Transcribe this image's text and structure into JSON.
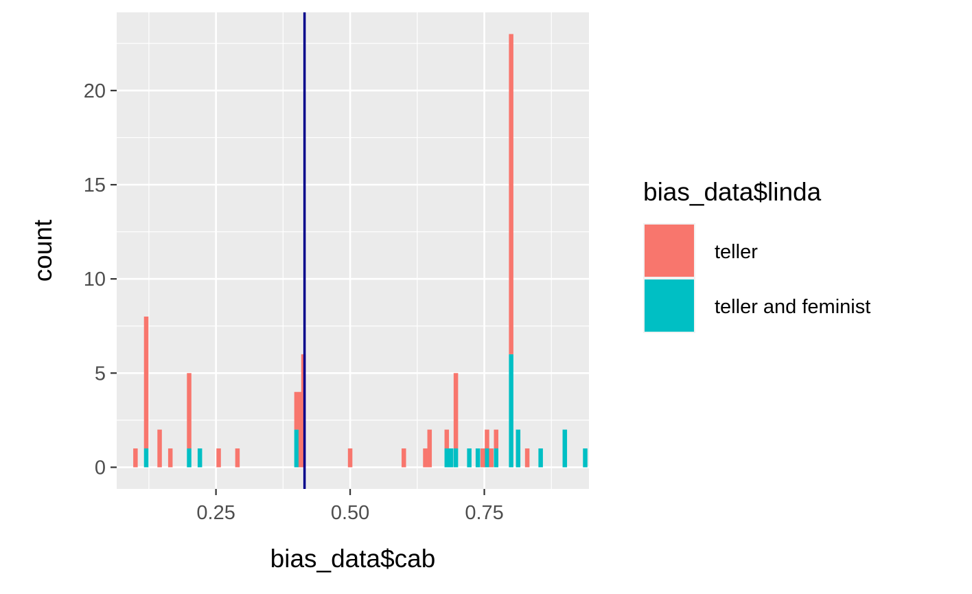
{
  "chart_data": {
    "type": "bar",
    "subtype": "stacked-histogram",
    "xlabel": "bias_data$cab",
    "ylabel": "count",
    "xlim": [
      0.065,
      0.945
    ],
    "ylim": [
      -1.15,
      24.15
    ],
    "xticks": [
      0.25,
      0.5,
      0.75
    ],
    "xtick_labels": [
      "0.25",
      "0.50",
      "0.75"
    ],
    "yticks": [
      0,
      5,
      10,
      15,
      20
    ],
    "ytick_labels": [
      "0",
      "5",
      "10",
      "15",
      "20"
    ],
    "grid": true,
    "binwidth": 0.00833,
    "vline": {
      "x": 0.415,
      "color": "#00008b"
    },
    "legend": {
      "title": "bias_data$linda",
      "placement": "right",
      "entries": [
        "teller",
        "teller and feminist"
      ]
    },
    "series": [
      {
        "name": "teller",
        "color": "#f8766d",
        "points": [
          {
            "x": 0.1,
            "y": 1
          },
          {
            "x": 0.12,
            "y": 7
          },
          {
            "x": 0.145,
            "y": 2
          },
          {
            "x": 0.165,
            "y": 1
          },
          {
            "x": 0.2,
            "y": 4
          },
          {
            "x": 0.255,
            "y": 1
          },
          {
            "x": 0.29,
            "y": 1
          },
          {
            "x": 0.4,
            "y": 2
          },
          {
            "x": 0.408,
            "y": 4
          },
          {
            "x": 0.413,
            "y": 6
          },
          {
            "x": 0.5,
            "y": 1
          },
          {
            "x": 0.6,
            "y": 1
          },
          {
            "x": 0.64,
            "y": 1
          },
          {
            "x": 0.648,
            "y": 2
          },
          {
            "x": 0.68,
            "y": 1
          },
          {
            "x": 0.697,
            "y": 4
          },
          {
            "x": 0.747,
            "y": 1
          },
          {
            "x": 0.755,
            "y": 1
          },
          {
            "x": 0.763,
            "y": 1
          },
          {
            "x": 0.772,
            "y": 1
          },
          {
            "x": 0.8,
            "y": 17
          },
          {
            "x": 0.83,
            "y": 1
          }
        ]
      },
      {
        "name": "teller and feminist",
        "color": "#00bfc4",
        "points": [
          {
            "x": 0.12,
            "y": 1
          },
          {
            "x": 0.2,
            "y": 1
          },
          {
            "x": 0.22,
            "y": 1
          },
          {
            "x": 0.4,
            "y": 2
          },
          {
            "x": 0.68,
            "y": 1
          },
          {
            "x": 0.688,
            "y": 1
          },
          {
            "x": 0.697,
            "y": 1
          },
          {
            "x": 0.722,
            "y": 1
          },
          {
            "x": 0.738,
            "y": 1
          },
          {
            "x": 0.755,
            "y": 1
          },
          {
            "x": 0.772,
            "y": 1
          },
          {
            "x": 0.8,
            "y": 6
          },
          {
            "x": 0.813,
            "y": 2
          },
          {
            "x": 0.855,
            "y": 1
          },
          {
            "x": 0.9,
            "y": 2
          },
          {
            "x": 0.938,
            "y": 1
          }
        ]
      }
    ]
  }
}
